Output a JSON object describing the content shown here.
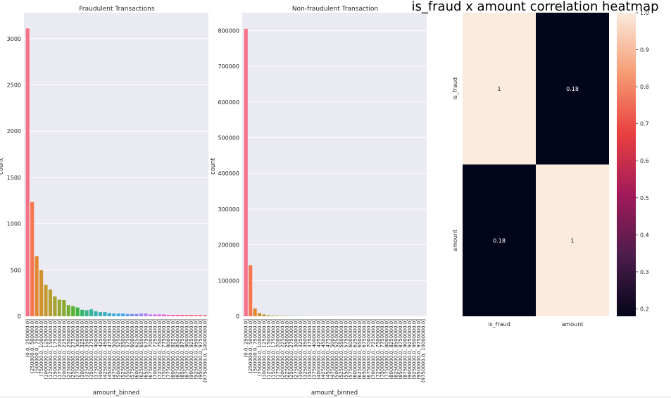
{
  "chart_data": [
    {
      "type": "bar",
      "title": "Fraudulent Transactions",
      "xlabel": "amount_binned",
      "ylabel": "count",
      "ylim": [
        0,
        3280
      ],
      "yticks": [
        0,
        500,
        1000,
        1500,
        2000,
        2500,
        3000
      ],
      "grid": true,
      "categories": [
        "(0.0, 250000.0]",
        "(250000.0, 500000.0]",
        "(500000.0, 750000.0]",
        "(750000.0, 1000000.0]",
        "(1000000.0, 1250000.0]",
        "(1250000.0, 1500000.0]",
        "(1500000.0, 1750000.0]",
        "(1750000.0, 2000000.0]",
        "(2000000.0, 2250000.0]",
        "(2250000.0, 2500000.0]",
        "(2500000.0, 2750000.0]",
        "(2750000.0, 3000000.0]",
        "(3000000.0, 3250000.0]",
        "(3250000.0, 3500000.0]",
        "(3500000.0, 3750000.0]",
        "(3750000.0, 4000000.0]",
        "(4000000.0, 4250000.0]",
        "(4250000.0, 4500000.0]",
        "(4500000.0, 4750000.0]",
        "(4750000.0, 5000000.0]",
        "(5000000.0, 5250000.0]",
        "(5250000.0, 5500000.0]",
        "(5500000.0, 5750000.0]",
        "(5750000.0, 6000000.0]",
        "(6000000.0, 6250000.0]",
        "(6250000.0, 6500000.0]",
        "(6500000.0, 6750000.0]",
        "(6750000.0, 7000000.0]",
        "(7000000.0, 7250000.0]",
        "(7250000.0, 7500000.0]",
        "(7500000.0, 7750000.0]",
        "(7750000.0, 8000000.0]",
        "(8000000.0, 8250000.0]",
        "(8250000.0, 8500000.0]",
        "(8500000.0, 8750000.0]",
        "(8750000.0, 9000000.0]",
        "(9000000.0, 9250000.0]",
        "(9250000.0, 9500000.0]",
        "(9500000.0, 9750000.0]",
        "(9750000.0, 10000000.0]"
      ],
      "values": [
        3110,
        1235,
        650,
        500,
        340,
        290,
        215,
        180,
        175,
        120,
        110,
        95,
        70,
        65,
        75,
        55,
        45,
        45,
        35,
        30,
        30,
        30,
        25,
        25,
        25,
        30,
        30,
        20,
        20,
        20,
        20,
        15,
        15,
        15,
        15,
        15,
        15,
        15,
        15,
        15
      ],
      "colors": [
        "#f77189",
        "#f7754f",
        "#e38732",
        "#d0922f",
        "#c59a30",
        "#b69e31",
        "#a8a331",
        "#98a731",
        "#88aa32",
        "#74ae32",
        "#5cb232",
        "#3eb643",
        "#34b66c",
        "#36b48a",
        "#37b39e",
        "#38b1ad",
        "#39b0b8",
        "#3aaec1",
        "#3cacca",
        "#3dabd4",
        "#3ea9de",
        "#45a4ea",
        "#5b9df2",
        "#7196f4",
        "#878ef4",
        "#9b88f4",
        "#ad7ff4",
        "#bd76f4",
        "#cc6df4",
        "#da64f0",
        "#e85dd8",
        "#f35ac4",
        "#f55cb2",
        "#f55ea2",
        "#f66192",
        "#f66585",
        "#f66983",
        "#f76d87",
        "#f7708a",
        "#f77189"
      ]
    },
    {
      "type": "bar",
      "title": "Non-fraudulent Transaction",
      "xlabel": "amount_binned",
      "ylabel": "count",
      "ylim": [
        0,
        850000
      ],
      "yticks": [
        0,
        100000,
        200000,
        300000,
        400000,
        500000,
        600000,
        700000,
        800000
      ],
      "grid": true,
      "categories": [
        "(0.0, 250000.0]",
        "(250000.0, 500000.0]",
        "(500000.0, 750000.0]",
        "(750000.0, 1000000.0]",
        "(1000000.0, 1250000.0]",
        "(1250000.0, 1500000.0]",
        "(1500000.0, 1750000.0]",
        "(1750000.0, 2000000.0]",
        "(2000000.0, 2250000.0]",
        "(2250000.0, 2500000.0]",
        "(2500000.0, 2750000.0]",
        "(2750000.0, 3000000.0]",
        "(3000000.0, 3250000.0]",
        "(3250000.0, 3500000.0]",
        "(3500000.0, 3750000.0]",
        "(3750000.0, 4000000.0]",
        "(4000000.0, 4250000.0]",
        "(4250000.0, 4500000.0]",
        "(4500000.0, 4750000.0]",
        "(4750000.0, 5000000.0]",
        "(5000000.0, 5250000.0]",
        "(5250000.0, 5500000.0]",
        "(5500000.0, 5750000.0]",
        "(5750000.0, 6000000.0]",
        "(6000000.0, 6250000.0]",
        "(6250000.0, 6500000.0]",
        "(6500000.0, 6750000.0]",
        "(6750000.0, 7000000.0]",
        "(7000000.0, 7250000.0]",
        "(7250000.0, 7500000.0]",
        "(7500000.0, 7750000.0]",
        "(7750000.0, 8000000.0]",
        "(8000000.0, 8250000.0]",
        "(8250000.0, 8500000.0]",
        "(8500000.0, 8750000.0]",
        "(8750000.0, 9000000.0]",
        "(9000000.0, 9250000.0]",
        "(9250000.0, 9500000.0]",
        "(9500000.0, 9750000.0]",
        "(9750000.0, 10000000.0]"
      ],
      "values": [
        805000,
        143000,
        22000,
        9000,
        5000,
        3000,
        2000,
        1500,
        1000,
        800,
        600,
        500,
        400,
        300,
        250,
        200,
        150,
        150,
        100,
        100,
        100,
        100,
        100,
        100,
        100,
        100,
        100,
        100,
        100,
        100,
        100,
        100,
        100,
        100,
        100,
        100,
        100,
        100,
        100,
        100
      ],
      "colors": [
        "#f77189",
        "#f7754f",
        "#e38732",
        "#d0922f",
        "#c59a30",
        "#b69e31",
        "#a8a331",
        "#98a731",
        "#88aa32",
        "#74ae32",
        "#5cb232",
        "#3eb643",
        "#34b66c",
        "#36b48a",
        "#37b39e",
        "#38b1ad",
        "#39b0b8",
        "#3aaec1",
        "#3cacca",
        "#3dabd4",
        "#3ea9de",
        "#45a4ea",
        "#5b9df2",
        "#7196f4",
        "#878ef4",
        "#9b88f4",
        "#ad7ff4",
        "#bd76f4",
        "#cc6df4",
        "#da64f0",
        "#e85dd8",
        "#f35ac4",
        "#f55cb2",
        "#f55ea2",
        "#f66192",
        "#f66585",
        "#f66983",
        "#f76d87",
        "#f7708a",
        "#f77189"
      ]
    },
    {
      "type": "heatmap",
      "title": "is_fraud x amount correlation heatmap",
      "x_categories": [
        "is_fraud",
        "amount"
      ],
      "y_categories": [
        "is_fraud",
        "amount"
      ],
      "values": [
        [
          1,
          0.18
        ],
        [
          0.18,
          1
        ]
      ],
      "cell_labels": [
        [
          "1",
          "0.18"
        ],
        [
          "0.18",
          "1"
        ]
      ],
      "colorbar": {
        "range": [
          0.18,
          1.0
        ],
        "ticks": [
          "0.2",
          "0.3",
          "0.4",
          "0.5",
          "0.6",
          "0.7",
          "0.8",
          "0.9",
          "1.0"
        ],
        "tick_values": [
          0.2,
          0.3,
          0.4,
          0.5,
          0.6,
          0.7,
          0.8,
          0.9,
          1.0
        ],
        "colors": [
          "#03051a",
          "#4c1d4b",
          "#a11a5b",
          "#e83f3f",
          "#f69c73",
          "#faebdd"
        ]
      }
    }
  ]
}
